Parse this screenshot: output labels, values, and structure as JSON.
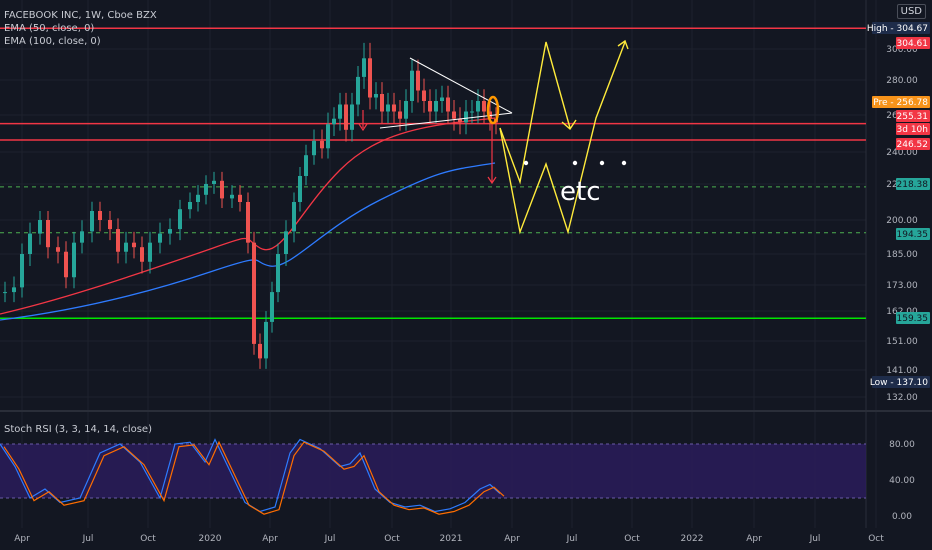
{
  "header": {
    "title": "FACEBOOK INC, 1W, Cboe BZX",
    "ema50": "EMA (50, close, 0)",
    "ema100": "EMA (100, close, 0)",
    "currency": "USD"
  },
  "stoch_header": "Stoch RSI (3, 3, 14, 14, close)",
  "price_ticks": [
    "300.00",
    "280.00",
    "260.00",
    "240.00",
    "220.00",
    "200.00",
    "185.00",
    "173.00",
    "162.00",
    "151.00",
    "141.00",
    "132.00"
  ],
  "stoch_ticks": [
    "80.00",
    "40.00",
    "0.00"
  ],
  "x_labels": [
    "Apr",
    "Jul",
    "Oct",
    "2020",
    "Apr",
    "Jul",
    "Oct",
    "2021",
    "Apr",
    "Jul",
    "Oct",
    "2022",
    "Apr",
    "Jul",
    "Oct"
  ],
  "price_tags": [
    {
      "label": "High",
      "value": "304.67",
      "color": "#1e2c4a",
      "text": "#ffffff"
    },
    {
      "label": "",
      "value": "304.61",
      "color": "#f23645",
      "text": "#ffffff"
    },
    {
      "label": "Pre",
      "value": "256.78",
      "color": "#f7931a",
      "text": "#ffffff"
    },
    {
      "label": "",
      "value": "255.31",
      "color": "#f23645",
      "text": "#ffffff"
    },
    {
      "label": "",
      "value": "3d 10h",
      "color": "#f23645",
      "text": "#ffffff"
    },
    {
      "label": "",
      "value": "246.52",
      "color": "#f23645",
      "text": "#ffffff"
    },
    {
      "label": "",
      "value": "218.38",
      "color": "#26a69a",
      "text": "#131722"
    },
    {
      "label": "",
      "value": "194.35",
      "color": "#26a69a",
      "text": "#131722"
    },
    {
      "label": "",
      "value": "159.35",
      "color": "#26a69a",
      "text": "#131722"
    },
    {
      "label": "Low",
      "value": "137.10",
      "color": "#1e2c4a",
      "text": "#ffffff"
    }
  ],
  "annotation": "etc",
  "chart_data": {
    "type": "candlestick",
    "title": "FACEBOOK INC, 1W, Cboe BZX",
    "ylim": [
      128,
      312
    ],
    "y_scale": "log",
    "horizontal_levels": [
      {
        "value": 304.61,
        "color": "#f23645",
        "style": "solid"
      },
      {
        "value": 255.31,
        "color": "#f23645",
        "style": "solid"
      },
      {
        "value": 246.52,
        "color": "#f23645",
        "style": "solid"
      },
      {
        "value": 218.38,
        "color": "#4caf50",
        "style": "dashed"
      },
      {
        "value": 194.35,
        "color": "#4caf50",
        "style": "dashed"
      },
      {
        "value": 159.35,
        "color": "#00e600",
        "style": "solid"
      }
    ],
    "ema_series": [
      {
        "name": "EMA (50, close, 0)",
        "color": "#f23645"
      },
      {
        "name": "EMA (100, close, 0)",
        "color": "#2962ff"
      }
    ],
    "stoch_rsi": {
      "levels": [
        80,
        20
      ],
      "range": [
        0,
        100
      ]
    },
    "colors": {
      "up": "#26a69a",
      "down": "#ef5350",
      "bg": "#131722",
      "projection": "#ffeb3b"
    }
  }
}
